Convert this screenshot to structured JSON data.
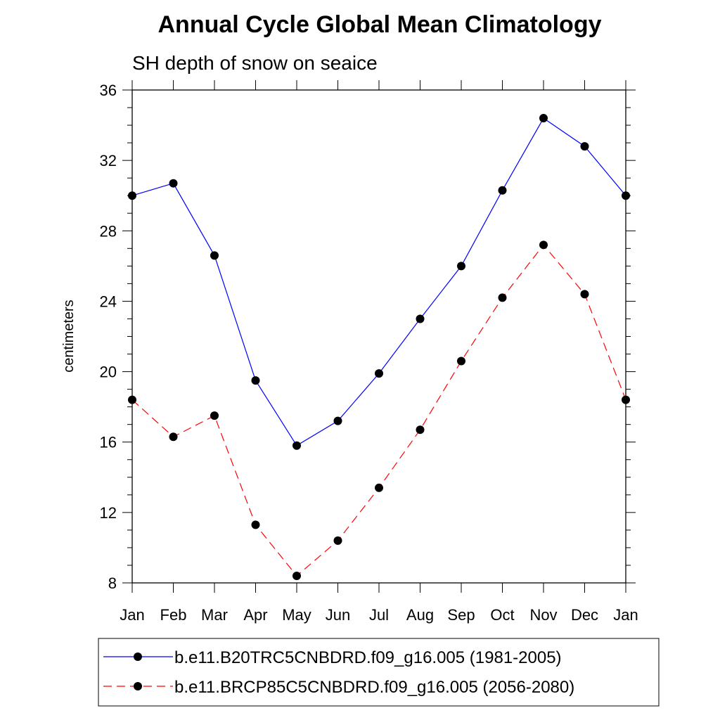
{
  "chart_data": {
    "type": "line",
    "title": "Annual Cycle Global Mean Climatology",
    "subtitle": "SH depth of snow on seaice",
    "xlabel": "",
    "ylabel": "centimeters",
    "categories": [
      "Jan",
      "Feb",
      "Mar",
      "Apr",
      "May",
      "Jun",
      "Jul",
      "Aug",
      "Sep",
      "Oct",
      "Nov",
      "Dec",
      "Jan"
    ],
    "ylim": [
      8,
      36
    ],
    "yticks": [
      "8",
      "12",
      "16",
      "20",
      "24",
      "28",
      "32",
      "36"
    ],
    "series": [
      {
        "name": "b.e11.B20TRC5CNBDRD.f09_g16.005 (1981-2005)",
        "color": "#0000ff",
        "dash": "solid",
        "values": [
          30.0,
          30.7,
          26.6,
          19.5,
          15.8,
          17.2,
          19.9,
          23.0,
          26.0,
          30.3,
          34.4,
          32.8,
          30.0
        ]
      },
      {
        "name": "b.e11.BRCP85C5CNBDRD.f09_g16.005 (2056-2080)",
        "color": "#ff0000",
        "dash": "dashed",
        "values": [
          18.4,
          16.3,
          17.5,
          11.3,
          8.4,
          10.4,
          13.4,
          16.7,
          20.6,
          24.2,
          27.2,
          24.4,
          18.4
        ]
      }
    ],
    "marker_color": "#000000",
    "legend_position": "bottom"
  }
}
